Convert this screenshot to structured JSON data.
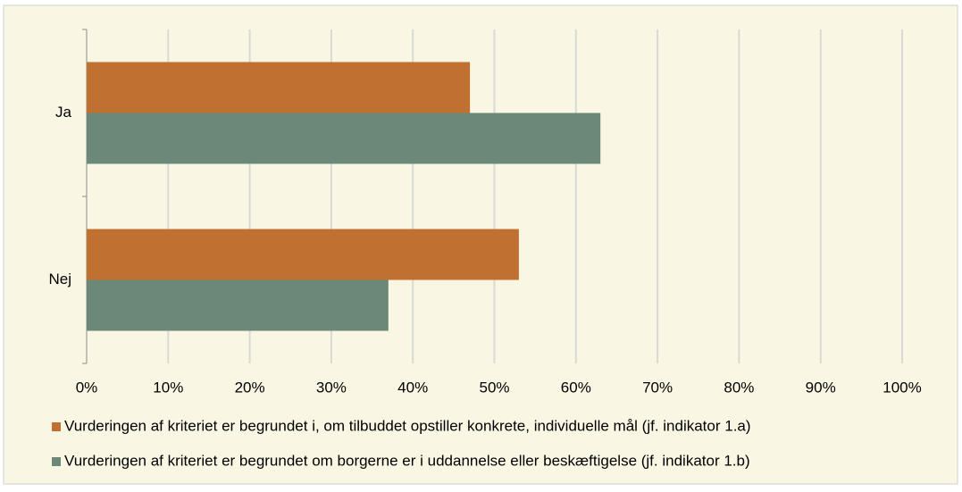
{
  "chart_data": {
    "type": "bar",
    "orientation": "horizontal",
    "categories": [
      "Ja",
      "Nej"
    ],
    "series": [
      {
        "name": "Vurderingen af kriteriet er begrundet i, om tilbuddet opstiller konkrete, individuelle mål (jf. indikator 1.a)",
        "color": "#c07030",
        "values": [
          47,
          53
        ]
      },
      {
        "name": "Vurderingen af kriteriet er begrundet om borgerne er i uddannelse eller beskæftigelse (jf. indikator 1.b)",
        "color": "#6b8878",
        "values": [
          63,
          37
        ]
      }
    ],
    "xlim": [
      0,
      100
    ],
    "xticks": [
      {
        "value": 0,
        "label": "0%"
      },
      {
        "value": 10,
        "label": "10%"
      },
      {
        "value": 20,
        "label": "20%"
      },
      {
        "value": 30,
        "label": "30%"
      },
      {
        "value": 40,
        "label": "40%"
      },
      {
        "value": 50,
        "label": "50%"
      },
      {
        "value": 60,
        "label": "60%"
      },
      {
        "value": 70,
        "label": "70%"
      },
      {
        "value": 80,
        "label": "80%"
      },
      {
        "value": 90,
        "label": "90%"
      },
      {
        "value": 100,
        "label": "100%"
      }
    ],
    "grid": true,
    "legend": "bottom"
  }
}
